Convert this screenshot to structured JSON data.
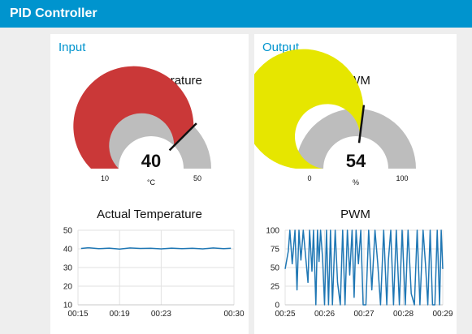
{
  "app": {
    "title": "PID Controller"
  },
  "input": {
    "group_title": "Input",
    "gauge": {
      "title": "Actual Temperature",
      "value": 40,
      "value_label": "40",
      "unit": "°C",
      "min": 10,
      "max": 50,
      "min_label": "10",
      "max_label": "50",
      "color": "#ca3838"
    },
    "chart": {
      "title": "Actual Temperature"
    }
  },
  "output": {
    "group_title": "Output",
    "gauge": {
      "title": "PWM",
      "value": 54,
      "value_label": "54",
      "unit": "%",
      "min": 0,
      "max": 100,
      "min_label": "0",
      "max_label": "100",
      "color": "#e6e600"
    },
    "chart": {
      "title": "PWM"
    }
  },
  "chart_data": [
    {
      "type": "line",
      "title": "Actual Temperature",
      "xlabel": "",
      "ylabel": "",
      "ylim": [
        10,
        50
      ],
      "y_ticks": [
        "10",
        "20",
        "30",
        "40",
        "50"
      ],
      "x_ticks": [
        "00:15",
        "00:19",
        "00:23",
        "00:30"
      ],
      "x_tick_seconds": [
        15,
        19,
        23,
        30
      ],
      "x_range_seconds": [
        15,
        30
      ],
      "grid": true,
      "series": [
        {
          "color": "#1f77b4",
          "x": [
            15.3,
            16,
            17,
            18,
            19,
            20,
            21,
            22,
            23,
            24,
            25,
            26,
            27,
            28,
            29,
            29.7
          ],
          "y": [
            40.2,
            40.6,
            40.1,
            40.4,
            39.9,
            40.5,
            40.2,
            40.3,
            40.0,
            40.4,
            40.1,
            40.3,
            40.0,
            40.5,
            40.1,
            40.3
          ]
        }
      ]
    },
    {
      "type": "line",
      "title": "PWM",
      "xlabel": "",
      "ylabel": "",
      "ylim": [
        0,
        100
      ],
      "y_ticks": [
        "0",
        "25",
        "50",
        "75",
        "100"
      ],
      "x_ticks": [
        "00:25",
        "00:26",
        "00:27",
        "00:28",
        "00:29"
      ],
      "x_tick_seconds": [
        25,
        26,
        27,
        28,
        29
      ],
      "x_range_seconds": [
        25,
        29
      ],
      "grid": true,
      "series": [
        {
          "color": "#1f77b4",
          "x": [
            25.0,
            25.08,
            25.12,
            25.18,
            25.25,
            25.3,
            25.35,
            25.4,
            25.46,
            25.52,
            25.58,
            25.62,
            25.68,
            25.72,
            25.78,
            25.82,
            25.86,
            25.9,
            25.95,
            26.0,
            26.05,
            26.1,
            26.15,
            26.2,
            26.27,
            26.33,
            26.4,
            26.46,
            26.52,
            26.58,
            26.64,
            26.7,
            26.75,
            26.8,
            26.86,
            26.92,
            26.98,
            27.05,
            27.12,
            27.2,
            27.28,
            27.35,
            27.42,
            27.5,
            27.58,
            27.62,
            27.68,
            27.75,
            27.82,
            27.9,
            27.97,
            28.05,
            28.12,
            28.2,
            28.28,
            28.35,
            28.42,
            28.5,
            28.56,
            28.62,
            28.68,
            28.74,
            28.8,
            28.86,
            28.92,
            28.96,
            29.0
          ],
          "y": [
            48,
            72,
            100,
            55,
            100,
            20,
            100,
            60,
            100,
            65,
            30,
            100,
            45,
            100,
            0,
            100,
            58,
            100,
            62,
            0,
            100,
            0,
            100,
            0,
            100,
            30,
            0,
            100,
            0,
            100,
            40,
            100,
            10,
            100,
            55,
            100,
            0,
            0,
            100,
            20,
            100,
            55,
            0,
            100,
            0,
            60,
            100,
            0,
            100,
            0,
            100,
            0,
            100,
            15,
            0,
            100,
            0,
            100,
            55,
            0,
            100,
            0,
            0,
            100,
            0,
            100,
            48
          ]
        }
      ]
    }
  ]
}
